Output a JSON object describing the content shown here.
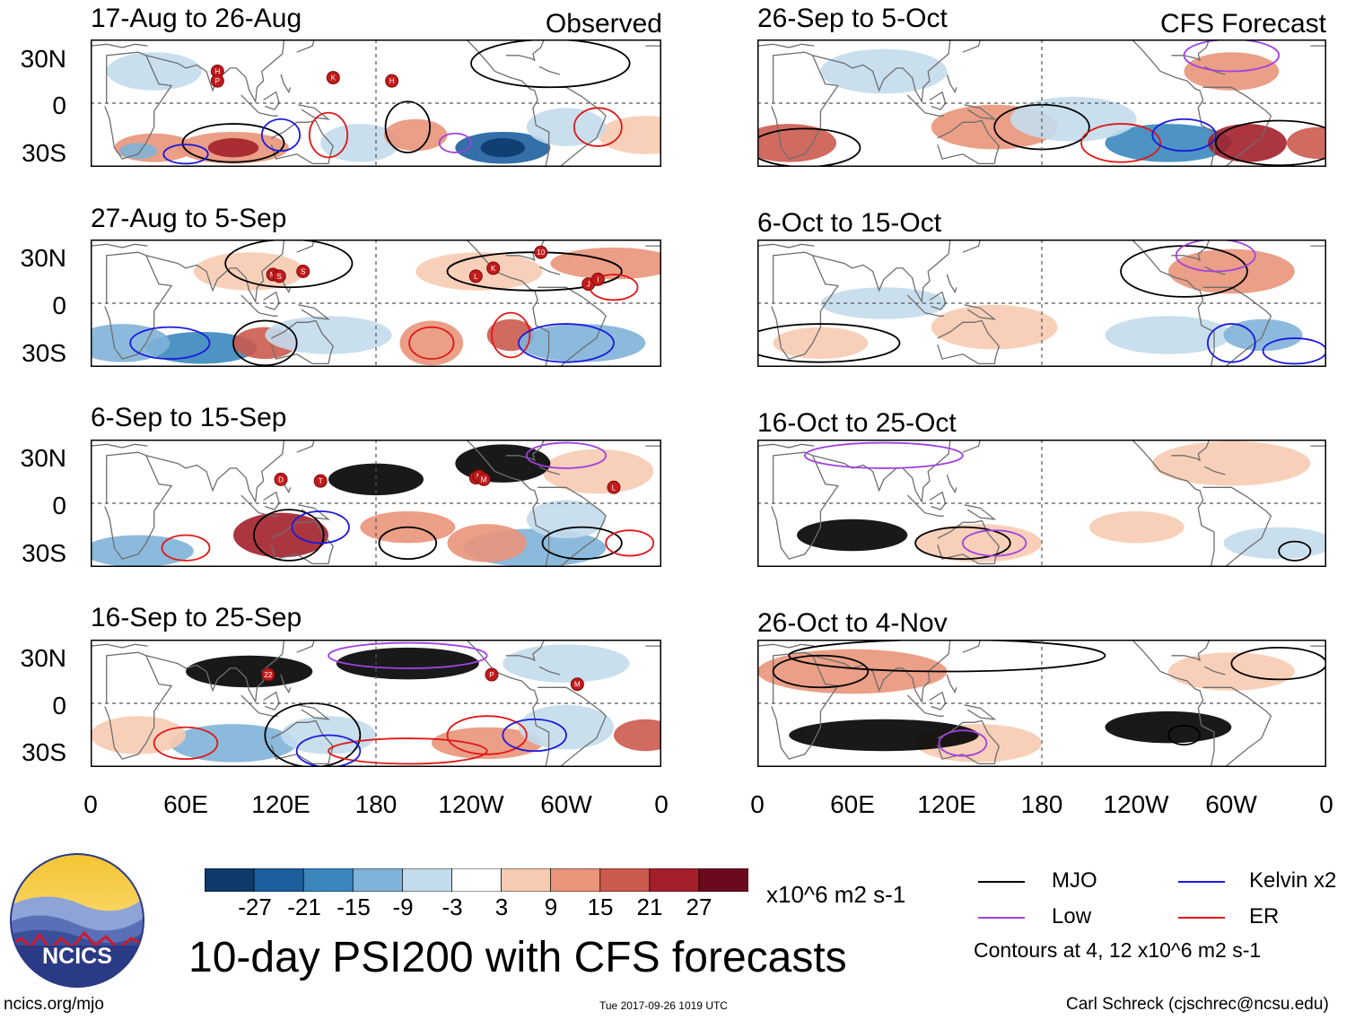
{
  "figure_title": "10-day PSI200 with CFS forecasts",
  "left_tag": "Observed",
  "right_tag": "CFS Forecast",
  "lat_labels": [
    "30N",
    "0",
    "30S"
  ],
  "lon_labels": [
    "0",
    "60E",
    "120E",
    "180",
    "120W",
    "60W",
    "0"
  ],
  "panels_observed": [
    {
      "period": "17-Aug to 26-Aug",
      "storms": [
        "H",
        "P",
        "K",
        "H"
      ]
    },
    {
      "period": "27-Aug to 5-Sep",
      "storms": [
        "M",
        "S",
        "S",
        "L",
        "K",
        "10",
        "J",
        "I"
      ]
    },
    {
      "period": "6-Sep to 15-Sep",
      "storms": [
        "D",
        "T",
        "O",
        "N",
        "M",
        "L"
      ]
    },
    {
      "period": "16-Sep to 25-Sep",
      "storms": [
        "22",
        "P",
        "M"
      ]
    }
  ],
  "panels_forecast": [
    {
      "period": "26-Sep to 5-Oct"
    },
    {
      "period": "6-Oct to 15-Oct"
    },
    {
      "period": "16-Oct to 25-Oct"
    },
    {
      "period": "26-Oct to 4-Nov"
    }
  ],
  "colorbar": {
    "unit_label": "x10^6 m2 s-1",
    "tick_labels": [
      "-27",
      "-21",
      "-15",
      "-9",
      "-3",
      "3",
      "9",
      "15",
      "21",
      "27"
    ],
    "colors": [
      "#0d3a6b",
      "#1d5f9e",
      "#3a87bd",
      "#7fb3d8",
      "#c3dcec",
      "#ffffff",
      "#f7cbb1",
      "#e9957a",
      "#cc5a4e",
      "#a3202b",
      "#6b0a1e"
    ]
  },
  "legend": {
    "items": [
      {
        "label": "MJO",
        "color": "#000000"
      },
      {
        "label": "Kelvin x2",
        "color": "#1a1adc"
      },
      {
        "label": "Low",
        "color": "#a040e0"
      },
      {
        "label": "ER",
        "color": "#e01818"
      }
    ],
    "contours_note": "Contours at 4, 12 x10^6 m2 s-1"
  },
  "logo": {
    "text": "NCICS"
  },
  "footer": {
    "left": "ncics.org/mjo",
    "center": "Tue 2017-09-26 1019 UTC",
    "right": "Carl Schreck (cjschrec@ncsu.edu)"
  }
}
